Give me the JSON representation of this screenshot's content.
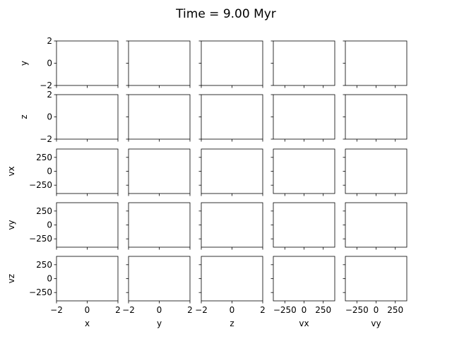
{
  "chart_data": {
    "type": "scatter",
    "title": "Time = 9.00 Myr",
    "layout": "corner-plot grid, 5 rows x 5 columns, empty panels",
    "columns": [
      {
        "label": "x",
        "range": [
          -2,
          2
        ],
        "ticks": [
          -2,
          0,
          2
        ],
        "tick_labels": [
          "−2",
          "0",
          "2"
        ]
      },
      {
        "label": "y",
        "range": [
          -2,
          2
        ],
        "ticks": [
          -2,
          0,
          2
        ],
        "tick_labels": [
          "−2",
          "0",
          "2"
        ]
      },
      {
        "label": "z",
        "range": [
          -2,
          2
        ],
        "ticks": [
          -2,
          0,
          2
        ],
        "tick_labels": [
          "−2",
          "0",
          "2"
        ]
      },
      {
        "label": "vx",
        "range": [
          -400,
          400
        ],
        "ticks": [
          -250,
          0,
          250
        ],
        "tick_labels": [
          "−250",
          "0",
          "250"
        ]
      },
      {
        "label": "vy",
        "range": [
          -400,
          400
        ],
        "ticks": [
          -250,
          0,
          250
        ],
        "tick_labels": [
          "−250",
          "0",
          "250"
        ]
      }
    ],
    "rows": [
      {
        "label": "y",
        "range": [
          -2,
          2
        ],
        "ticks": [
          -2,
          0,
          2
        ],
        "tick_labels": [
          "−2",
          "0",
          "2"
        ]
      },
      {
        "label": "z",
        "range": [
          -2,
          2
        ],
        "ticks": [
          -2,
          0,
          2
        ],
        "tick_labels": [
          "−2",
          "0",
          "2"
        ]
      },
      {
        "label": "vx",
        "range": [
          -400,
          400
        ],
        "ticks": [
          -250,
          0,
          250
        ],
        "tick_labels": [
          "−250",
          "0",
          "250"
        ]
      },
      {
        "label": "vy",
        "range": [
          -400,
          400
        ],
        "ticks": [
          -250,
          0,
          250
        ],
        "tick_labels": [
          "−250",
          "0",
          "250"
        ]
      },
      {
        "label": "vz",
        "range": [
          -400,
          400
        ],
        "ticks": [
          -250,
          0,
          250
        ],
        "tick_labels": [
          "−250",
          "0",
          "250"
        ]
      }
    ],
    "points": [],
    "grid": false,
    "legend": "none"
  }
}
